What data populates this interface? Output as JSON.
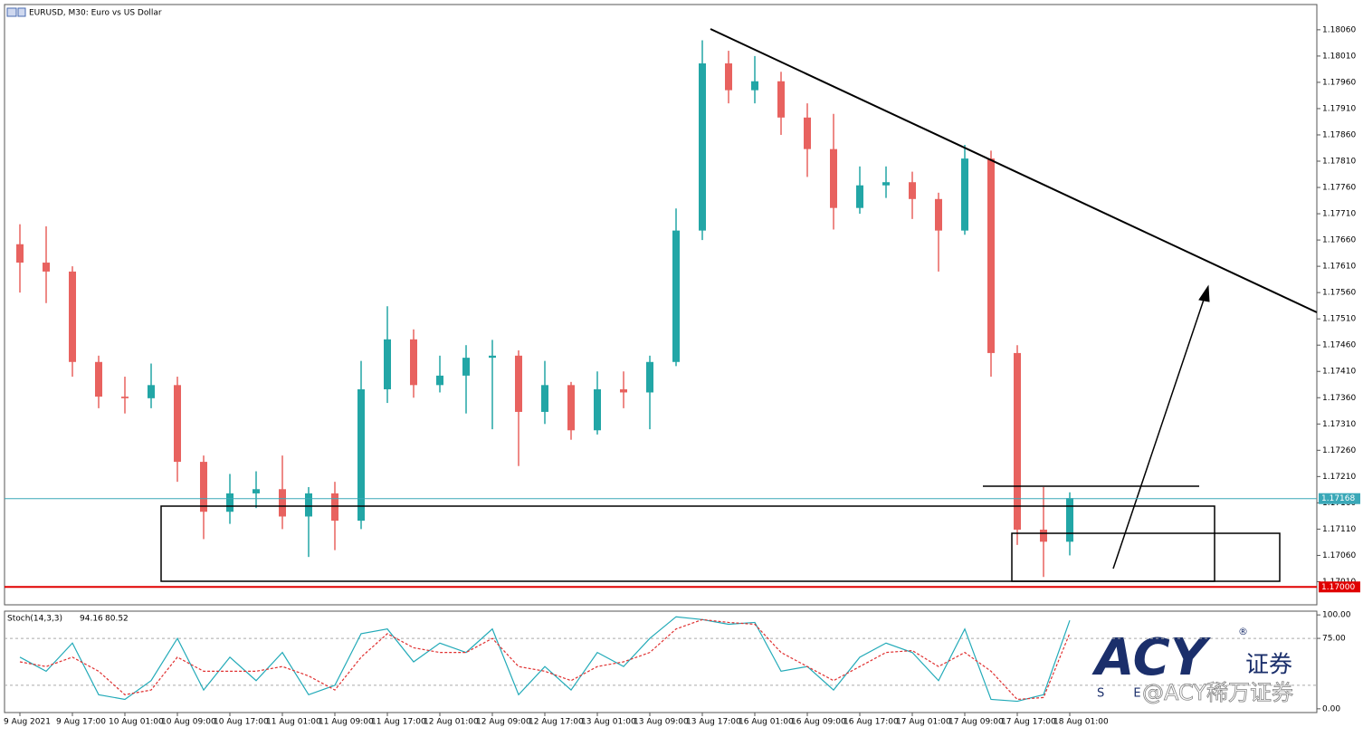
{
  "chart_data": {
    "type": "candlestick",
    "title": "EURUSD, M30:  Euro vs US Dollar",
    "categories": [
      "9 Aug 2021",
      null,
      "9 Aug 17:00",
      null,
      "10 Aug 01:00",
      null,
      "10 Aug 09:00",
      null,
      "10 Aug 17:00",
      null,
      "11 Aug 01:00",
      null,
      "11 Aug 09:00",
      null,
      "11 Aug 17:00",
      null,
      "12 Aug 01:00",
      null,
      "12 Aug 09:00",
      null,
      "12 Aug 17:00",
      null,
      "13 Aug 01:00",
      null,
      "13 Aug 09:00",
      null,
      "13 Aug 17:00",
      null,
      "16 Aug 01:00",
      null,
      "16 Aug 09:00",
      null,
      "16 Aug 17:00",
      null,
      "17 Aug 01:00",
      null,
      "17 Aug 09:00",
      null,
      "17 Aug 17:00",
      null,
      "18 Aug 01:00"
    ],
    "open": [
      1.17652,
      1.17617,
      1.176,
      1.17428,
      1.17362,
      1.17359,
      1.17384,
      1.17238,
      1.17143,
      1.17178,
      1.17186,
      1.17134,
      1.17178,
      1.17126,
      1.17376,
      1.17471,
      1.17384,
      1.17402,
      1.17436,
      1.1744,
      1.17333,
      1.17384,
      1.17298,
      1.17376,
      1.1737,
      1.17428,
      1.17678,
      1.17996,
      1.17945,
      1.17962,
      1.17893,
      1.17833,
      1.17721,
      1.17764,
      1.1777,
      1.17738,
      1.17678,
      1.17815,
      1.17445,
      1.17109,
      1.17086
    ],
    "high": [
      1.1769,
      1.17686,
      1.1761,
      1.1744,
      1.174,
      1.17425,
      1.174,
      1.1725,
      1.17215,
      1.1722,
      1.1725,
      1.1719,
      1.172,
      1.1743,
      1.17534,
      1.1749,
      1.1744,
      1.1746,
      1.1747,
      1.1745,
      1.1743,
      1.1739,
      1.1741,
      1.1741,
      1.1744,
      1.1772,
      1.1804,
      1.1802,
      1.1801,
      1.1798,
      1.1792,
      1.179,
      1.178,
      1.178,
      1.1779,
      1.1775,
      1.17841,
      1.1783,
      1.1746,
      1.1719,
      1.1718
    ],
    "low": [
      1.1756,
      1.1754,
      1.174,
      1.1734,
      1.1733,
      1.1734,
      1.172,
      1.17091,
      1.1712,
      1.1715,
      1.1711,
      1.17057,
      1.1707,
      1.1711,
      1.1735,
      1.1736,
      1.1737,
      1.1733,
      1.173,
      1.1723,
      1.1731,
      1.1728,
      1.1729,
      1.1734,
      1.173,
      1.1742,
      1.1766,
      1.1792,
      1.1792,
      1.1786,
      1.1778,
      1.1768,
      1.1771,
      1.1774,
      1.177,
      1.176,
      1.1767,
      1.174,
      1.1708,
      1.17019,
      1.1706
    ],
    "close": [
      1.17617,
      1.176,
      1.17428,
      1.17362,
      1.17359,
      1.17384,
      1.17238,
      1.17143,
      1.17178,
      1.17186,
      1.17134,
      1.17178,
      1.17126,
      1.17376,
      1.17471,
      1.17384,
      1.17402,
      1.17436,
      1.1744,
      1.17333,
      1.17384,
      1.17298,
      1.17376,
      1.1737,
      1.17428,
      1.17678,
      1.17996,
      1.17945,
      1.17962,
      1.17893,
      1.17833,
      1.17721,
      1.17764,
      1.1777,
      1.17738,
      1.17678,
      1.17815,
      1.17445,
      1.17109,
      1.17086,
      1.17169
    ],
    "up_color": "#22a6a6",
    "down_color": "#e8625f",
    "ylim": [
      1.16966,
      1.18108
    ],
    "yticks": [
      {
        "value": 1.1806,
        "label": "1.18060"
      },
      {
        "value": 1.1801,
        "label": "1.18010"
      },
      {
        "value": 1.1796,
        "label": "1.17960"
      },
      {
        "value": 1.1791,
        "label": "1.17910"
      },
      {
        "value": 1.1786,
        "label": "1.17860"
      },
      {
        "value": 1.1781,
        "label": "1.17810"
      },
      {
        "value": 1.1776,
        "label": "1.17760"
      },
      {
        "value": 1.1771,
        "label": "1.17710"
      },
      {
        "value": 1.1766,
        "label": "1.17660"
      },
      {
        "value": 1.1761,
        "label": "1.17610"
      },
      {
        "value": 1.1756,
        "label": "1.17560"
      },
      {
        "value": 1.1751,
        "label": "1.17510"
      },
      {
        "value": 1.1746,
        "label": "1.17460"
      },
      {
        "value": 1.1741,
        "label": "1.17410"
      },
      {
        "value": 1.1736,
        "label": "1.17360"
      },
      {
        "value": 1.1731,
        "label": "1.17310"
      },
      {
        "value": 1.1726,
        "label": "1.17260"
      },
      {
        "value": 1.1721,
        "label": "1.17210"
      },
      {
        "value": 1.1716,
        "label": "1.17160"
      },
      {
        "value": 1.1711,
        "label": "1.17110"
      },
      {
        "value": 1.1706,
        "label": "1.17060"
      },
      {
        "value": 1.1701,
        "label": "1.17010"
      }
    ],
    "price_lines": [
      {
        "value": 1.17168,
        "label": "1.17168",
        "color": "#3aa8b8"
      },
      {
        "value": 1.17,
        "label": "1.17000",
        "color": "#e00000"
      }
    ],
    "indicator": {
      "name": "Stoch(14,3,3)",
      "ylim": [
        -4,
        104
      ],
      "yticks": [
        {
          "value": 100,
          "label": "100.00"
        },
        {
          "value": 75,
          "label": "75.00"
        },
        {
          "value": 0,
          "label": "0.00"
        }
      ],
      "levels": [
        75,
        25
      ],
      "series": [
        {
          "name": "Main",
          "color": "#22aab8",
          "dash": false,
          "values": [
            55,
            40,
            70,
            15,
            10,
            30,
            75,
            20,
            55,
            30,
            60,
            15,
            25,
            80,
            85,
            50,
            70,
            60,
            85,
            15,
            45,
            20,
            60,
            45,
            75,
            98,
            95,
            90,
            92,
            40,
            45,
            20,
            55,
            70,
            60,
            30,
            85,
            10,
            8,
            15,
            94.16
          ]
        },
        {
          "name": "Signal",
          "color": "#e03030",
          "dash": true,
          "values": [
            50,
            45,
            55,
            40,
            15,
            20,
            55,
            40,
            40,
            40,
            45,
            35,
            20,
            55,
            80,
            65,
            60,
            60,
            75,
            45,
            40,
            30,
            45,
            50,
            60,
            85,
            95,
            92,
            90,
            60,
            45,
            30,
            45,
            60,
            62,
            45,
            60,
            40,
            10,
            12,
            80.52
          ]
        }
      ]
    },
    "branding": {
      "logo": "ACY",
      "registered": "®",
      "logo_cn": "证券",
      "logo_sub": "S E",
      "handle": "@ACY稀万证券"
    }
  }
}
